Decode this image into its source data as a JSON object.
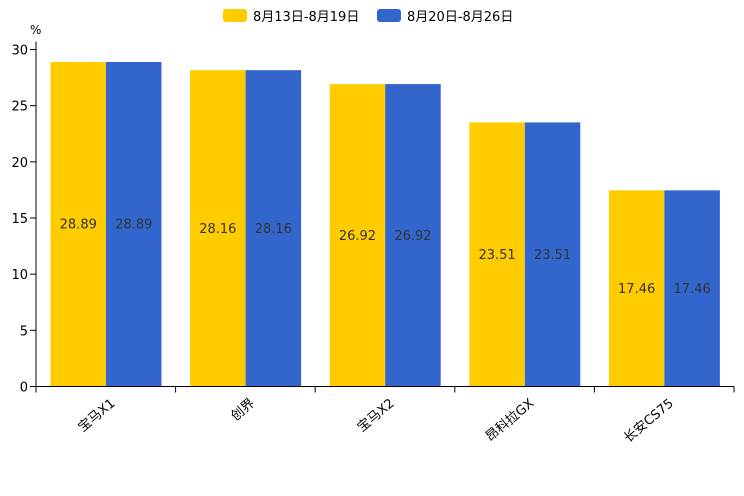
{
  "chart_data": {
    "type": "bar",
    "title": "",
    "xlabel": "",
    "ylabel": "%",
    "ylim": [
      0,
      30
    ],
    "yticks": [
      0,
      5,
      10,
      15,
      20,
      25,
      30
    ],
    "categories": [
      "宝马X1",
      "创界",
      "宝马X2",
      "昂科拉GX",
      "长安CS75"
    ],
    "series": [
      {
        "name": "8月13日-8月19日",
        "color": "#FFCC00",
        "values": [
          28.89,
          28.16,
          26.92,
          23.51,
          17.46
        ]
      },
      {
        "name": "8月20日-8月26日",
        "color": "#3366CC",
        "values": [
          28.89,
          28.16,
          26.92,
          23.51,
          17.46
        ]
      }
    ],
    "legend_position": "top-center",
    "grid": false
  }
}
